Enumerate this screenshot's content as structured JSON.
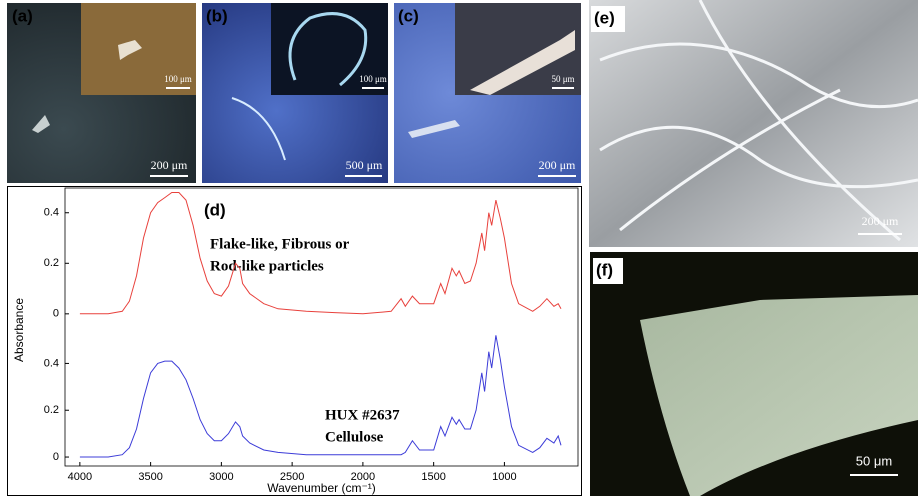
{
  "panels": [
    {
      "label": "(a)",
      "scale": "200 μm",
      "inset_scale": "100 μm"
    },
    {
      "label": "(b)",
      "scale": "500 μm",
      "inset_scale": "100 μm"
    },
    {
      "label": "(c)",
      "scale": "200 μm",
      "inset_scale": "50 μm"
    },
    {
      "label": "(d)"
    },
    {
      "label": "(e)",
      "scale": "200 μm"
    },
    {
      "label": "(f)",
      "scale": "50 μm"
    }
  ],
  "chart_data": [
    {
      "type": "line",
      "annotation": [
        "Flake-like, Fibrous or",
        "Rod-like particles"
      ],
      "x": [
        4000,
        3800,
        3700,
        3650,
        3600,
        3550,
        3500,
        3450,
        3400,
        3350,
        3300,
        3250,
        3200,
        3150,
        3100,
        3050,
        3000,
        2950,
        2900,
        2870,
        2850,
        2800,
        2700,
        2600,
        2400,
        2200,
        2000,
        1800,
        1730,
        1700,
        1650,
        1600,
        1500,
        1450,
        1420,
        1370,
        1340,
        1320,
        1280,
        1240,
        1200,
        1160,
        1140,
        1110,
        1090,
        1060,
        1030,
        1000,
        950,
        900,
        800,
        750,
        700,
        650,
        620,
        600
      ],
      "series": [
        {
          "color": "#e8413c",
          "values": [
            0,
            0,
            0.01,
            0.05,
            0.15,
            0.3,
            0.4,
            0.44,
            0.46,
            0.48,
            0.48,
            0.45,
            0.35,
            0.22,
            0.13,
            0.08,
            0.07,
            0.11,
            0.2,
            0.18,
            0.12,
            0.08,
            0.04,
            0.02,
            0.01,
            0.005,
            0,
            0.01,
            0.06,
            0.03,
            0.07,
            0.04,
            0.04,
            0.12,
            0.08,
            0.18,
            0.15,
            0.17,
            0.12,
            0.13,
            0.2,
            0.32,
            0.25,
            0.4,
            0.35,
            0.45,
            0.38,
            0.3,
            0.12,
            0.04,
            0.01,
            0.03,
            0.06,
            0.03,
            0.04,
            0.02
          ]
        }
      ],
      "xlim": [
        4105,
        480
      ],
      "ylim": [
        -0.06,
        0.49
      ],
      "yticks": [
        0,
        0.2,
        0.4
      ]
    },
    {
      "type": "line",
      "annotation": [
        "HUX #2637",
        "Cellulose"
      ],
      "x_label": "Wavenumber (cm⁻¹)",
      "y_label": "Absorbance",
      "x": [
        4000,
        3800,
        3700,
        3650,
        3600,
        3550,
        3500,
        3450,
        3400,
        3350,
        3300,
        3250,
        3200,
        3150,
        3100,
        3050,
        3000,
        2950,
        2900,
        2870,
        2850,
        2800,
        2700,
        2600,
        2400,
        2200,
        2000,
        1800,
        1730,
        1700,
        1650,
        1600,
        1500,
        1450,
        1420,
        1370,
        1340,
        1320,
        1280,
        1240,
        1200,
        1160,
        1140,
        1110,
        1090,
        1060,
        1030,
        1000,
        950,
        900,
        800,
        750,
        700,
        650,
        620,
        600
      ],
      "series": [
        {
          "color": "#3c3cd8",
          "values": [
            0,
            0,
            0.01,
            0.04,
            0.12,
            0.25,
            0.36,
            0.4,
            0.41,
            0.41,
            0.38,
            0.33,
            0.25,
            0.16,
            0.1,
            0.07,
            0.07,
            0.1,
            0.15,
            0.13,
            0.09,
            0.06,
            0.03,
            0.02,
            0.01,
            0.01,
            0.01,
            0.01,
            0.01,
            0.02,
            0.07,
            0.03,
            0.03,
            0.13,
            0.09,
            0.17,
            0.14,
            0.16,
            0.12,
            0.12,
            0.2,
            0.36,
            0.28,
            0.45,
            0.38,
            0.52,
            0.42,
            0.3,
            0.13,
            0.05,
            0.02,
            0.04,
            0.08,
            0.06,
            0.09,
            0.05
          ]
        }
      ],
      "xlim": [
        4105,
        480
      ],
      "ylim": [
        -0.034,
        0.53
      ],
      "yticks": [
        0,
        0.2,
        0.4
      ],
      "xticks": [
        4000,
        3500,
        3000,
        2500,
        2000,
        1500,
        1000
      ]
    }
  ]
}
